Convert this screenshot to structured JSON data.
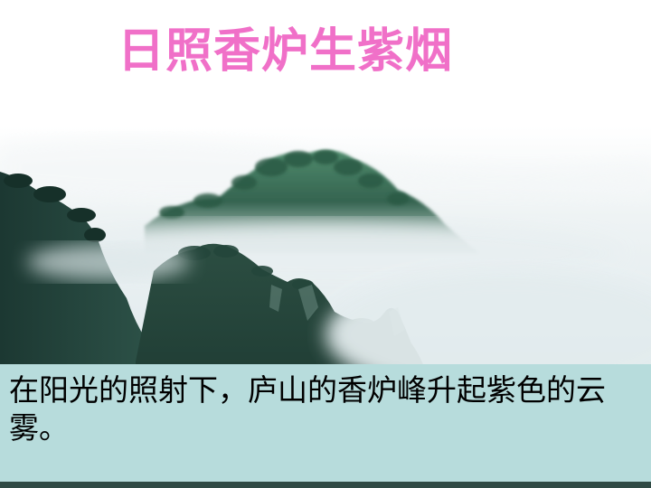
{
  "slide": {
    "title": "日照香炉生紫烟",
    "caption": "在阳光的照射下，庐山的香炉峰升起紫色的云雾。"
  },
  "colors": {
    "title": "#f070c8",
    "caption_background": "#b7dcdc",
    "mountain_dark": "#1f3b33",
    "mountain_green": "#3e6e58",
    "mist": "#e6eef0"
  }
}
